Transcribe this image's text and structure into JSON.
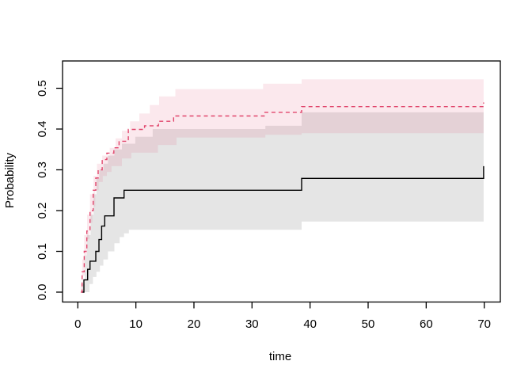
{
  "figure": {
    "background": "#ffffff"
  },
  "chart_data": {
    "type": "line",
    "variant": "step-survival-curves-with-confidence-bands",
    "title": "",
    "xlabel": "time",
    "ylabel": "Probability",
    "xlim": [
      0,
      70
    ],
    "ylim": [
      0.0,
      0.5
    ],
    "grid": false,
    "legend": "none",
    "x_ticks": [
      {
        "value": 0,
        "label": "0"
      },
      {
        "value": 10,
        "label": "10"
      },
      {
        "value": 20,
        "label": "20"
      },
      {
        "value": 30,
        "label": "30"
      },
      {
        "value": 40,
        "label": "40"
      },
      {
        "value": 50,
        "label": "50"
      },
      {
        "value": 60,
        "label": "60"
      },
      {
        "value": 70,
        "label": "70"
      }
    ],
    "y_ticks": [
      {
        "value": 0.0,
        "label": "0.0"
      },
      {
        "value": 0.1,
        "label": "0.1"
      },
      {
        "value": 0.2,
        "label": "0.2"
      },
      {
        "value": 0.3,
        "label": "0.3"
      },
      {
        "value": 0.4,
        "label": "0.4"
      },
      {
        "value": 0.5,
        "label": "0.5"
      }
    ],
    "series": [
      {
        "name": "black-solid-estimate",
        "line_style": "solid",
        "color": "#000000",
        "band_color": "rgba(0,0,0,0.10)",
        "t_start": 0.78,
        "t_end": 69.9,
        "steps": [
          [
            0.78,
            0
          ],
          [
            1.05,
            0.03
          ],
          [
            1.69,
            0.056
          ],
          [
            2.1,
            0.076
          ],
          [
            3.1,
            0.1
          ],
          [
            3.64,
            0.129
          ],
          [
            4.1,
            0.162
          ],
          [
            4.64,
            0.187
          ],
          [
            6.23,
            0.231
          ],
          [
            7.96,
            0.25
          ],
          [
            38.55,
            0.279
          ],
          [
            69.9,
            0.309
          ]
        ],
        "band_upper": [
          [
            0.78,
            0.02
          ],
          [
            1.2,
            0.09
          ],
          [
            1.6,
            0.14
          ],
          [
            2.2,
            0.19
          ],
          [
            2.7,
            0.24
          ],
          [
            3.2,
            0.28
          ],
          [
            3.7,
            0.3
          ],
          [
            4.4,
            0.315
          ],
          [
            5.2,
            0.335
          ],
          [
            6.3,
            0.35
          ],
          [
            7.6,
            0.364
          ],
          [
            9.9,
            0.381
          ],
          [
            12.9,
            0.4
          ],
          [
            32.3,
            0.408
          ],
          [
            38.55,
            0.441
          ]
        ],
        "band_lower": [
          [
            0.78,
            0
          ],
          [
            2.0,
            0.02
          ],
          [
            2.6,
            0.037
          ],
          [
            3.2,
            0.05
          ],
          [
            3.8,
            0.065
          ],
          [
            4.4,
            0.08
          ],
          [
            5.2,
            0.1
          ],
          [
            6.3,
            0.12
          ],
          [
            7.2,
            0.135
          ],
          [
            7.96,
            0.144
          ],
          [
            8.8,
            0.153
          ],
          [
            38.55,
            0.173
          ]
        ]
      },
      {
        "name": "red-dashed-estimate",
        "line_style": "dashed",
        "color": "#e1456c",
        "band_color": "rgba(225,69,108,0.12)",
        "t_start": 0.5,
        "t_end": 69.9,
        "steps": [
          [
            0.5,
            0
          ],
          [
            0.73,
            0.05
          ],
          [
            1.1,
            0.1
          ],
          [
            1.55,
            0.15
          ],
          [
            2.1,
            0.2
          ],
          [
            2.65,
            0.25
          ],
          [
            3.1,
            0.28
          ],
          [
            3.5,
            0.3
          ],
          [
            4.2,
            0.325
          ],
          [
            5.0,
            0.341
          ],
          [
            6.2,
            0.354
          ],
          [
            7.1,
            0.37
          ],
          [
            8.7,
            0.399
          ],
          [
            11.5,
            0.408
          ],
          [
            13.9,
            0.419
          ],
          [
            16.5,
            0.432
          ],
          [
            32.1,
            0.441
          ],
          [
            38.55,
            0.455
          ],
          [
            69.9,
            0.465
          ]
        ],
        "band_upper": [
          [
            0.5,
            0.02
          ],
          [
            0.75,
            0.08
          ],
          [
            1.1,
            0.14
          ],
          [
            1.6,
            0.19
          ],
          [
            2.1,
            0.24
          ],
          [
            2.7,
            0.285
          ],
          [
            3.3,
            0.315
          ],
          [
            4.2,
            0.335
          ],
          [
            5.5,
            0.354
          ],
          [
            6.5,
            0.377
          ],
          [
            7.6,
            0.396
          ],
          [
            9.0,
            0.419
          ],
          [
            10.6,
            0.438
          ],
          [
            12.4,
            0.459
          ],
          [
            14.0,
            0.48
          ],
          [
            16.8,
            0.498
          ],
          [
            31.9,
            0.511
          ],
          [
            38.55,
            0.522
          ]
        ],
        "band_lower": [
          [
            0.5,
            0
          ],
          [
            0.85,
            0.04
          ],
          [
            1.2,
            0.09
          ],
          [
            1.6,
            0.13
          ],
          [
            2.0,
            0.17
          ],
          [
            2.5,
            0.21
          ],
          [
            3.0,
            0.25
          ],
          [
            3.6,
            0.27
          ],
          [
            4.3,
            0.285
          ],
          [
            5.0,
            0.295
          ],
          [
            5.8,
            0.309
          ],
          [
            7.6,
            0.328
          ],
          [
            9.2,
            0.342
          ],
          [
            13.8,
            0.361
          ],
          [
            17.0,
            0.379
          ],
          [
            32.3,
            0.386
          ],
          [
            38.55,
            0.39
          ]
        ]
      }
    ]
  }
}
